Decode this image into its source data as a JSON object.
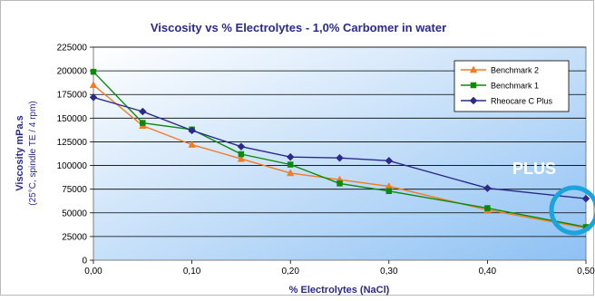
{
  "chart_data": {
    "type": "line",
    "title": "Viscosity vs % Electrolytes - 1,0% Carbomer in water",
    "xlabel": "% Electrolytes  (NaCl)",
    "ylabel_line1": "Viscosity  mPa.s",
    "ylabel_line2": "(25°C, spindle TE / 4 rpm)",
    "xlim": [
      0,
      0.5
    ],
    "ylim": [
      0,
      225000
    ],
    "x_ticks": [
      "0,00",
      "0,10",
      "0,20",
      "0,30",
      "0,40",
      "0,50"
    ],
    "y_ticks": [
      "0",
      "25000",
      "50000",
      "75000",
      "100000",
      "125000",
      "150000",
      "175000",
      "200000",
      "225000"
    ],
    "grid": true,
    "legend_position": "top-right",
    "series": [
      {
        "name": "Benchmark 2",
        "color": "#f47b20",
        "marker": "triangle",
        "x": [
          0,
          0.05,
          0.1,
          0.15,
          0.2,
          0.25,
          0.3,
          0.4,
          0.5
        ],
        "y": [
          185000,
          142000,
          122000,
          107000,
          92000,
          85000,
          78000,
          53000,
          34000
        ]
      },
      {
        "name": "Benchmark 1",
        "color": "#0c8a0c",
        "marker": "square",
        "x": [
          0,
          0.05,
          0.1,
          0.15,
          0.2,
          0.25,
          0.3,
          0.4,
          0.5
        ],
        "y": [
          199000,
          145000,
          138000,
          112000,
          101000,
          81000,
          73000,
          55000,
          35000
        ]
      },
      {
        "name": "Rheocare C Plus",
        "color": "#2a2a8c",
        "marker": "diamond",
        "x": [
          0,
          0.05,
          0.1,
          0.15,
          0.2,
          0.25,
          0.3,
          0.4,
          0.5
        ],
        "y": [
          172000,
          157000,
          137000,
          120000,
          109000,
          108000,
          105000,
          76000,
          65000
        ]
      }
    ],
    "logo": {
      "text": "PLUS",
      "text_color": "#ffffff",
      "ring_color": "#1aa3dd"
    },
    "colors": {
      "title": "#2a2a8c",
      "axis_label": "#2a2a8c",
      "plot_bg_start": "#ffffff",
      "plot_bg_end": "#8ec1f3"
    }
  }
}
